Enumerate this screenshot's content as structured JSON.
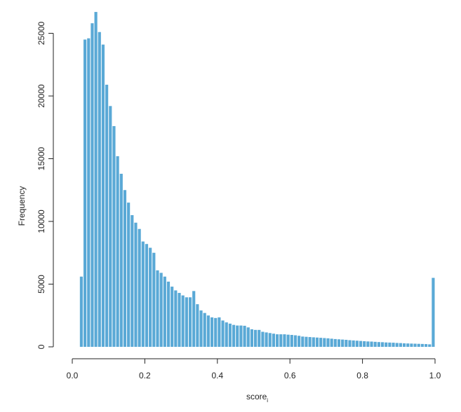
{
  "chart_data": {
    "type": "bar",
    "title": "",
    "xlabel": "score",
    "xlabel_subscript": "i",
    "ylabel": "Frequency",
    "bar_color": "#5aa9d6",
    "grid": false,
    "xlim": [
      0,
      1
    ],
    "ylim": [
      0,
      26000
    ],
    "xticks": [
      0.0,
      0.2,
      0.4,
      0.6,
      0.8,
      1.0
    ],
    "xtick_labels": [
      "0.0",
      "0.2",
      "0.4",
      "0.6",
      "0.8",
      "1.0"
    ],
    "yticks": [
      0,
      5000,
      10000,
      15000,
      20000,
      25000
    ],
    "ytick_labels": [
      "0",
      "5000",
      "10000",
      "15000",
      "20000",
      "25000"
    ],
    "bin_width": 0.01,
    "bins_start": [
      0.02,
      0.03,
      0.04,
      0.05,
      0.06,
      0.07,
      0.08,
      0.09,
      0.1,
      0.11,
      0.12,
      0.13,
      0.14,
      0.15,
      0.16,
      0.17,
      0.18,
      0.19,
      0.2,
      0.21,
      0.22,
      0.23,
      0.24,
      0.25,
      0.26,
      0.27,
      0.28,
      0.29,
      0.3,
      0.31,
      0.32,
      0.33,
      0.34,
      0.35,
      0.36,
      0.37,
      0.38,
      0.39,
      0.4,
      0.41,
      0.42,
      0.43,
      0.44,
      0.45,
      0.46,
      0.47,
      0.48,
      0.49,
      0.5,
      0.51,
      0.52,
      0.53,
      0.54,
      0.55,
      0.56,
      0.57,
      0.58,
      0.59,
      0.6,
      0.61,
      0.62,
      0.63,
      0.64,
      0.65,
      0.66,
      0.67,
      0.68,
      0.69,
      0.7,
      0.71,
      0.72,
      0.73,
      0.74,
      0.75,
      0.76,
      0.77,
      0.78,
      0.79,
      0.8,
      0.81,
      0.82,
      0.83,
      0.84,
      0.85,
      0.86,
      0.87,
      0.88,
      0.89,
      0.9,
      0.91,
      0.92,
      0.93,
      0.94,
      0.95,
      0.96,
      0.97,
      0.98,
      0.99
    ],
    "values": [
      5600,
      24500,
      24600,
      25800,
      26700,
      25100,
      24100,
      20900,
      19200,
      17600,
      15200,
      13800,
      12500,
      11500,
      10500,
      9900,
      9400,
      8400,
      8200,
      7900,
      7500,
      6100,
      5900,
      5600,
      5200,
      4800,
      4500,
      4300,
      4100,
      3950,
      3950,
      4450,
      3400,
      2900,
      2700,
      2500,
      2350,
      2300,
      2350,
      2100,
      1950,
      1850,
      1750,
      1700,
      1700,
      1680,
      1550,
      1400,
      1350,
      1350,
      1200,
      1150,
      1100,
      1050,
      1000,
      1000,
      1000,
      970,
      950,
      920,
      880,
      820,
      800,
      780,
      760,
      740,
      720,
      700,
      680,
      650,
      620,
      600,
      580,
      560,
      530,
      510,
      490,
      470,
      450,
      430,
      420,
      400,
      380,
      370,
      350,
      340,
      330,
      310,
      300,
      280,
      270,
      260,
      250,
      240,
      230,
      220,
      200,
      5500
    ]
  }
}
